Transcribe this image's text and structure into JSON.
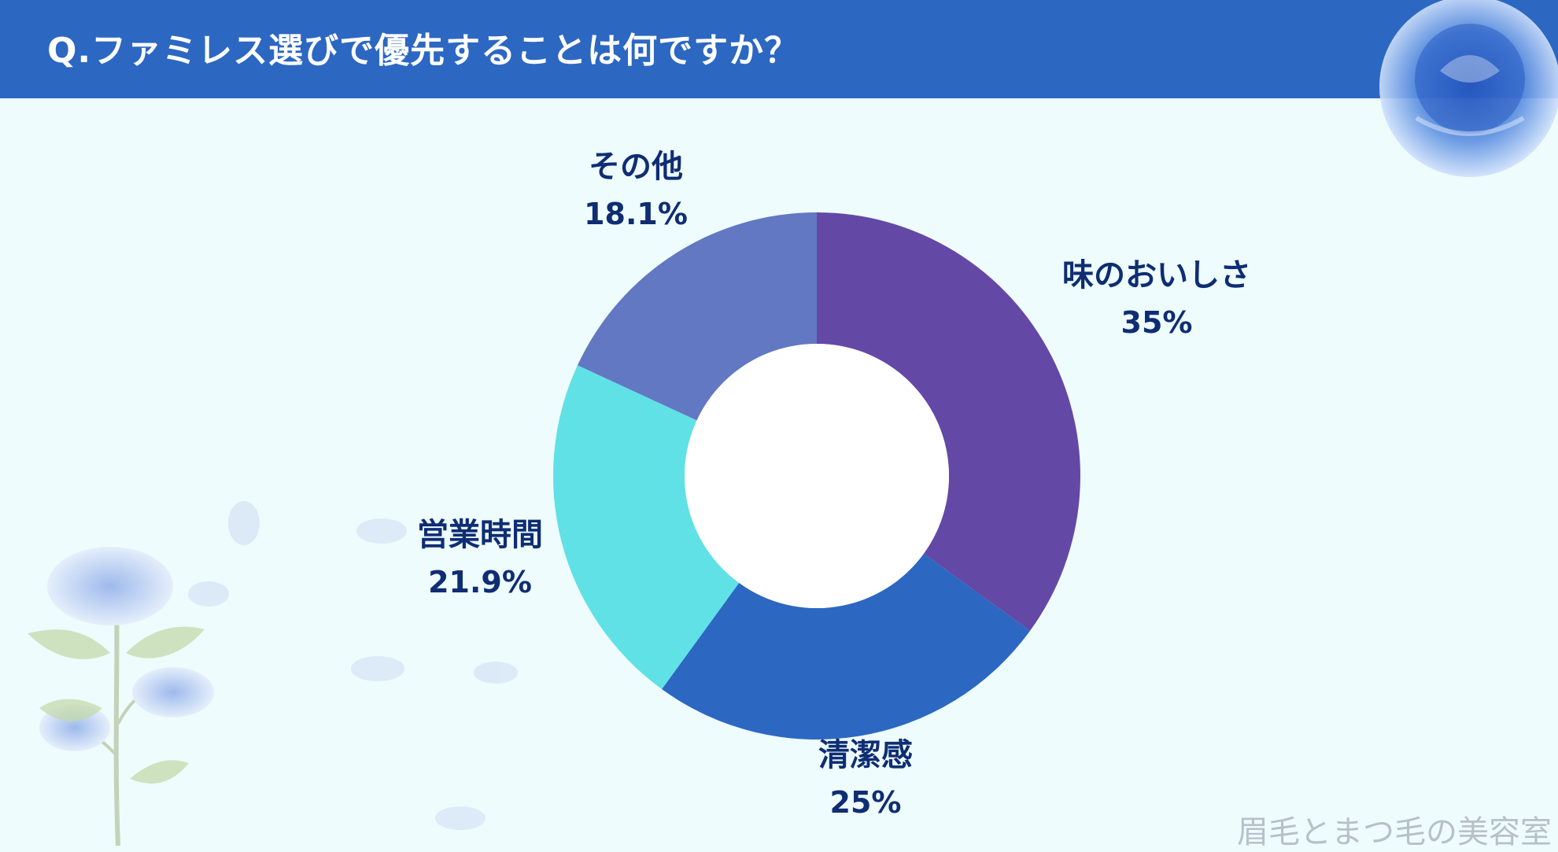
{
  "header": {
    "title": "Q.ファミレス選びで優先することは何ですか？"
  },
  "chart_data": {
    "type": "pie",
    "donut": true,
    "title": "Q.ファミレス選びで優先することは何ですか？",
    "categories": [
      "味のおいしさ",
      "清潔感",
      "営業時間",
      "その他"
    ],
    "values": [
      35,
      25,
      21.9,
      18.1
    ],
    "value_labels": [
      "35%",
      "25%",
      "21.9%",
      "18.1%"
    ],
    "colors": [
      "#6448a6",
      "#2c67c2",
      "#5fe1e6",
      "#6278c3"
    ],
    "start_angle": "12 o'clock, clockwise"
  },
  "watermark": "眉毛とまつ毛の美容室",
  "decorations": [
    "rose-icon",
    "leaf-icon",
    "petal-icon"
  ]
}
